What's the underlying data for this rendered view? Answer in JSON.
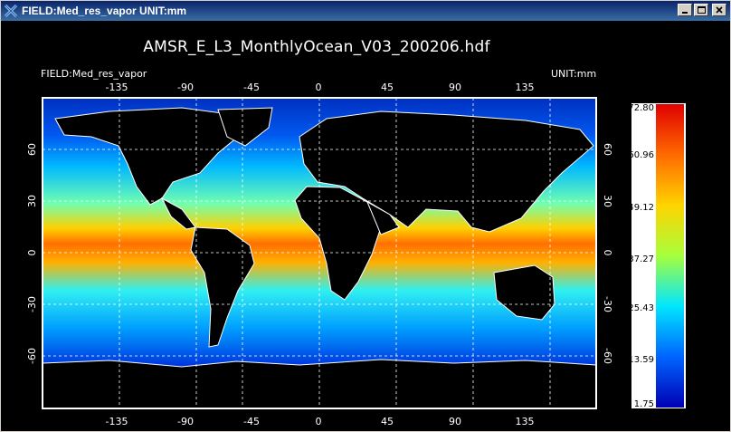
{
  "window": {
    "title": "FIELD:Med_res_vapor  UNIT:mm",
    "icon": "idl-x-icon",
    "buttons": {
      "minimize": "minimize-icon",
      "maximize": "maximize-icon",
      "close": "close-icon"
    }
  },
  "plot": {
    "title": "AMSR_E_L3_MonthlyOcean_V03_200206.hdf",
    "field_label": "FIELD:Med_res_vapor",
    "unit_label": "UNIT:mm",
    "lon_ticks": [
      "-135",
      "-90",
      "-45",
      "0",
      "45",
      "90",
      "135"
    ],
    "lat_ticks": [
      "60",
      "30",
      "0",
      "-30",
      "-60"
    ],
    "grid": "dashed",
    "background": "#000000",
    "land_color": "#000000",
    "coast_color": "#ffffff"
  },
  "colorbar": {
    "labels": [
      "72.80",
      "60.96",
      "49.12",
      "37.27",
      "25.43",
      "13.59",
      "1.75"
    ],
    "max": 72.8,
    "min": 1.75,
    "colors": [
      "#e00000",
      "#ff6a00",
      "#ffd400",
      "#a6ff3c",
      "#00e6ff",
      "#0064ff",
      "#0000b4"
    ]
  }
}
